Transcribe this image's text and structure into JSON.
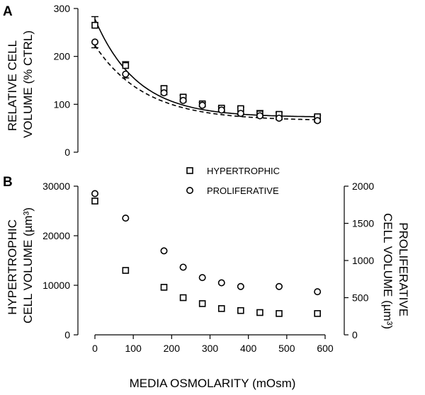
{
  "chart_data": [
    {
      "panel": "A",
      "type": "line",
      "ylabel_lines": [
        "RELATIVE CELL",
        "VOLUME (% CTRL)"
      ],
      "xlim": [
        0,
        600
      ],
      "ylim": [
        0,
        300
      ],
      "yticks": [
        0,
        100,
        200,
        300
      ],
      "series": [
        {
          "marker": "square",
          "fit_line": "solid",
          "x": [
            0,
            80,
            180,
            230,
            280,
            330,
            380,
            430,
            480,
            580
          ],
          "y": [
            265,
            181,
            133,
            115,
            101,
            92,
            91,
            80,
            79,
            74
          ],
          "err": [
            18,
            8,
            5,
            4,
            3,
            3,
            3,
            7,
            4,
            3
          ],
          "fit": {
            "amp": 205,
            "decay": 110,
            "offset": 73
          }
        },
        {
          "marker": "circle",
          "fit_line": "dashed",
          "x": [
            0,
            80,
            180,
            230,
            280,
            330,
            380,
            430,
            480,
            580
          ],
          "y": [
            230,
            163,
            124,
            108,
            98,
            88,
            81,
            76,
            71,
            66
          ],
          "err": [
            12,
            8,
            4,
            3,
            3,
            3,
            3,
            3,
            3,
            3
          ],
          "fit": {
            "amp": 157,
            "decay": 130,
            "offset": 66
          }
        }
      ]
    },
    {
      "panel": "B",
      "type": "scatter",
      "xlabel": "MEDIA OSMOLARITY (mOsm)",
      "ylabel_left_lines": [
        "HYPERTROPHIC",
        "CELL VOLUME (µm³)"
      ],
      "ylabel_right_lines": [
        "PROLIFERATIVE",
        "CELL VOLUME (µm³)"
      ],
      "xlim": [
        0,
        600
      ],
      "xticks": [
        0,
        100,
        200,
        300,
        400,
        500,
        600
      ],
      "ylim_left": [
        0,
        30000
      ],
      "yticks_left": [
        0,
        10000,
        20000,
        30000
      ],
      "ylim_right": [
        0,
        2000
      ],
      "yticks_right": [
        0,
        500,
        1000,
        1500,
        2000
      ],
      "legend": "top-center",
      "series": [
        {
          "name": "HYPERTROPHIC",
          "marker": "square",
          "axis": "left",
          "x": [
            0,
            80,
            180,
            230,
            280,
            330,
            380,
            430,
            480,
            580
          ],
          "y": [
            27000,
            13000,
            9600,
            7500,
            6300,
            5300,
            4900,
            4500,
            4300,
            4300
          ]
        },
        {
          "name": "PROLIFERATIVE",
          "marker": "circle",
          "axis": "right",
          "x": [
            0,
            80,
            180,
            230,
            280,
            330,
            380,
            480,
            580
          ],
          "y": [
            1900,
            1570,
            1130,
            910,
            770,
            700,
            650,
            650,
            580
          ]
        }
      ]
    }
  ]
}
